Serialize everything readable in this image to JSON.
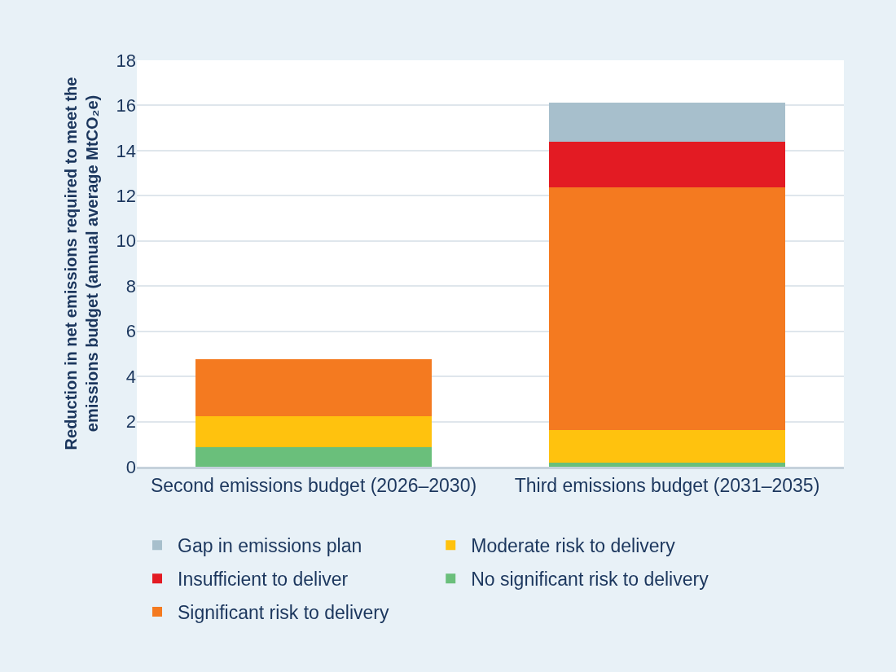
{
  "chart_data": {
    "type": "bar",
    "stacked": true,
    "ylabel": "Reduction in net emissions required to meet the emissions budget (annual average MtCO₂e)",
    "categories": [
      "Second emissions budget (2026–2030)",
      "Third emissions budget (2031–2035)"
    ],
    "series": [
      {
        "name": "No significant risk to delivery",
        "color": "#6abf7b",
        "values": [
          0.85,
          0.18
        ]
      },
      {
        "name": "Moderate risk to delivery",
        "color": "#ffc20e",
        "values": [
          1.4,
          1.43
        ]
      },
      {
        "name": "Significant risk to delivery",
        "color": "#f47a20",
        "values": [
          2.51,
          10.75
        ]
      },
      {
        "name": "Insufficient to deliver",
        "color": "#e31b23",
        "values": [
          null,
          2.03
        ]
      },
      {
        "name": "Gap in emissions plan",
        "color": "#a7bfcc",
        "values": [
          null,
          1.75
        ]
      }
    ],
    "ylim": [
      0,
      18
    ],
    "yticks": [
      0,
      2,
      4,
      6,
      8,
      10,
      12,
      14,
      16,
      18
    ],
    "grid": "y",
    "legend": "bottom"
  }
}
